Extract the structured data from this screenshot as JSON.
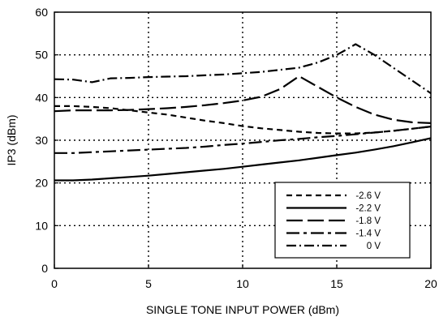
{
  "chart_data": {
    "type": "line",
    "xlabel": "SINGLE TONE INPUT POWER (dBm)",
    "ylabel": "IP3 (dBm)",
    "xlim": [
      0,
      20
    ],
    "ylim": [
      0,
      60
    ],
    "xticks": [
      "0",
      "5",
      "10",
      "15",
      "20"
    ],
    "yticks": [
      "0",
      "10",
      "20",
      "30",
      "40",
      "50",
      "60"
    ],
    "grid": true,
    "legend_position": "bottom-right",
    "series": [
      {
        "name": "-2.6 V",
        "dash": "short-dash",
        "x": [
          0,
          1,
          2,
          3,
          4,
          5,
          6,
          7,
          8,
          9,
          10,
          11,
          12,
          13,
          14,
          15,
          16,
          17,
          18,
          19,
          20
        ],
        "y": [
          38.0,
          38.0,
          37.8,
          37.5,
          37.0,
          36.5,
          36.0,
          35.3,
          34.6,
          34.0,
          33.3,
          32.8,
          32.4,
          32.0,
          31.7,
          31.6,
          31.6,
          31.8,
          32.2,
          32.7,
          33.2
        ]
      },
      {
        "name": "-2.2 V",
        "dash": "solid",
        "x": [
          0,
          1,
          2,
          3,
          4,
          5,
          6,
          7,
          8,
          9,
          10,
          11,
          12,
          13,
          14,
          15,
          16,
          17,
          18,
          19,
          20
        ],
        "y": [
          20.6,
          20.6,
          20.8,
          21.1,
          21.4,
          21.7,
          22.1,
          22.5,
          22.9,
          23.3,
          23.8,
          24.3,
          24.8,
          25.3,
          25.9,
          26.5,
          27.1,
          27.8,
          28.6,
          29.5,
          30.5
        ]
      },
      {
        "name": "-1.8 V",
        "dash": "long-dash",
        "x": [
          0,
          1,
          2,
          3,
          4,
          5,
          6,
          7,
          8,
          9,
          10,
          11,
          12,
          13,
          14,
          15,
          16,
          17,
          18,
          19,
          20
        ],
        "y": [
          36.8,
          37.0,
          37.0,
          37.0,
          37.1,
          37.3,
          37.5,
          37.8,
          38.2,
          38.7,
          39.3,
          40.2,
          42.0,
          45.0,
          42.5,
          40.0,
          37.8,
          36.0,
          34.8,
          34.2,
          34.0
        ]
      },
      {
        "name": "-1.4 V",
        "dash": "long-short",
        "x": [
          0,
          1,
          2,
          3,
          4,
          5,
          6,
          7,
          8,
          9,
          10,
          11,
          12,
          13,
          14,
          15,
          16,
          17,
          18,
          19,
          20
        ],
        "y": [
          27.0,
          27.0,
          27.2,
          27.4,
          27.6,
          27.8,
          28.0,
          28.2,
          28.5,
          28.9,
          29.2,
          29.6,
          30.0,
          30.3,
          30.7,
          31.0,
          31.4,
          31.8,
          32.2,
          32.7,
          33.2
        ]
      },
      {
        "name": "0 V",
        "dash": "dash-dot",
        "x": [
          0,
          1,
          2,
          3,
          4,
          5,
          6,
          7,
          8,
          9,
          10,
          11,
          12,
          13,
          14,
          15,
          15.5,
          16,
          17,
          18,
          19,
          20
        ],
        "y": [
          44.3,
          44.2,
          43.6,
          44.5,
          44.6,
          44.8,
          44.9,
          45.0,
          45.2,
          45.4,
          45.7,
          46.0,
          46.5,
          47.0,
          48.2,
          50.0,
          51.2,
          52.5,
          50.0,
          47.0,
          44.0,
          41.0
        ]
      }
    ]
  },
  "colors": {
    "line": "#000000",
    "grid": "#000000",
    "background": "#ffffff"
  }
}
